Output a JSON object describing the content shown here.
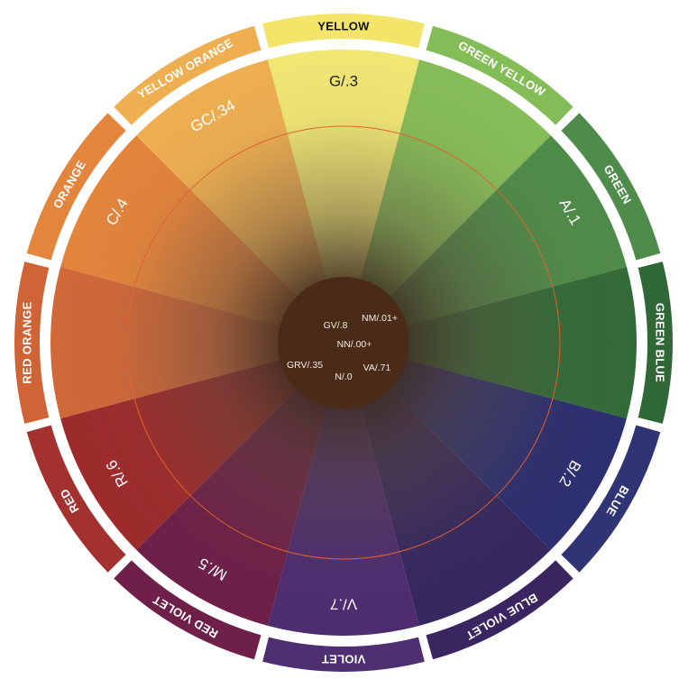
{
  "wheel": {
    "segments": [
      {
        "name": "YELLOW",
        "code": "G/.3",
        "color": "#f2e569",
        "wedge_color": "#f0e774",
        "ring_text": "#111111",
        "code_text": "#222222"
      },
      {
        "name": "GREEN YELLOW",
        "code": "",
        "color": "#84bd57",
        "wedge_color": "#86bd58",
        "ring_text": "#ffffff",
        "code_text": "#ffffff"
      },
      {
        "name": "GREEN",
        "code": "A/.1",
        "color": "#4f8c4c",
        "wedge_color": "#4f8b48",
        "ring_text": "#ffffff",
        "code_text": "#ffffff"
      },
      {
        "name": "GREEN BLUE",
        "code": "",
        "color": "#2f6836",
        "wedge_color": "#336b38",
        "ring_text": "#ffffff",
        "code_text": "#ffffff"
      },
      {
        "name": "BLUE",
        "code": "B/.2",
        "color": "#2f3474",
        "wedge_color": "#2c2f70",
        "ring_text": "#ffffff",
        "code_text": "#ffffff"
      },
      {
        "name": "BLUE VIOLET",
        "code": "",
        "color": "#3a2561",
        "wedge_color": "#35275f",
        "ring_text": "#ffffff",
        "code_text": "#ffffff"
      },
      {
        "name": "VIOLET",
        "code": "V/.7",
        "color": "#4d2f72",
        "wedge_color": "#4d2c70",
        "ring_text": "#ffffff",
        "code_text": "#ffffff"
      },
      {
        "name": "RED VIOLET",
        "code": "M/.5",
        "color": "#6e2048",
        "wedge_color": "#6d1f48",
        "ring_text": "#ffffff",
        "code_text": "#ffffff"
      },
      {
        "name": "RED",
        "code": "R/.6",
        "color": "#a33130",
        "wedge_color": "#9d2b2c",
        "ring_text": "#ffffff",
        "code_text": "#ffffff"
      },
      {
        "name": "RED ORANGE",
        "code": "",
        "color": "#cf6437",
        "wedge_color": "#d0683a",
        "ring_text": "#ffffff",
        "code_text": "#ffffff"
      },
      {
        "name": "ORANGE",
        "code": "C/.4",
        "color": "#e4853e",
        "wedge_color": "#e3843c",
        "ring_text": "#ffffff",
        "code_text": "#ffffff"
      },
      {
        "name": "YELLOW ORANGE",
        "code": "GC/.34",
        "color": "#efae4f",
        "wedge_color": "#efaf51",
        "ring_text": "#ffffff",
        "code_text": "#ffffff"
      }
    ],
    "center": {
      "color": "#4a2b17",
      "labels": [
        "GV/.8",
        "NM/.01+",
        "NN/.00+",
        "GRV/.35",
        "VA/.71",
        "N/.0"
      ]
    },
    "circle_line_color": "#e0622e"
  }
}
